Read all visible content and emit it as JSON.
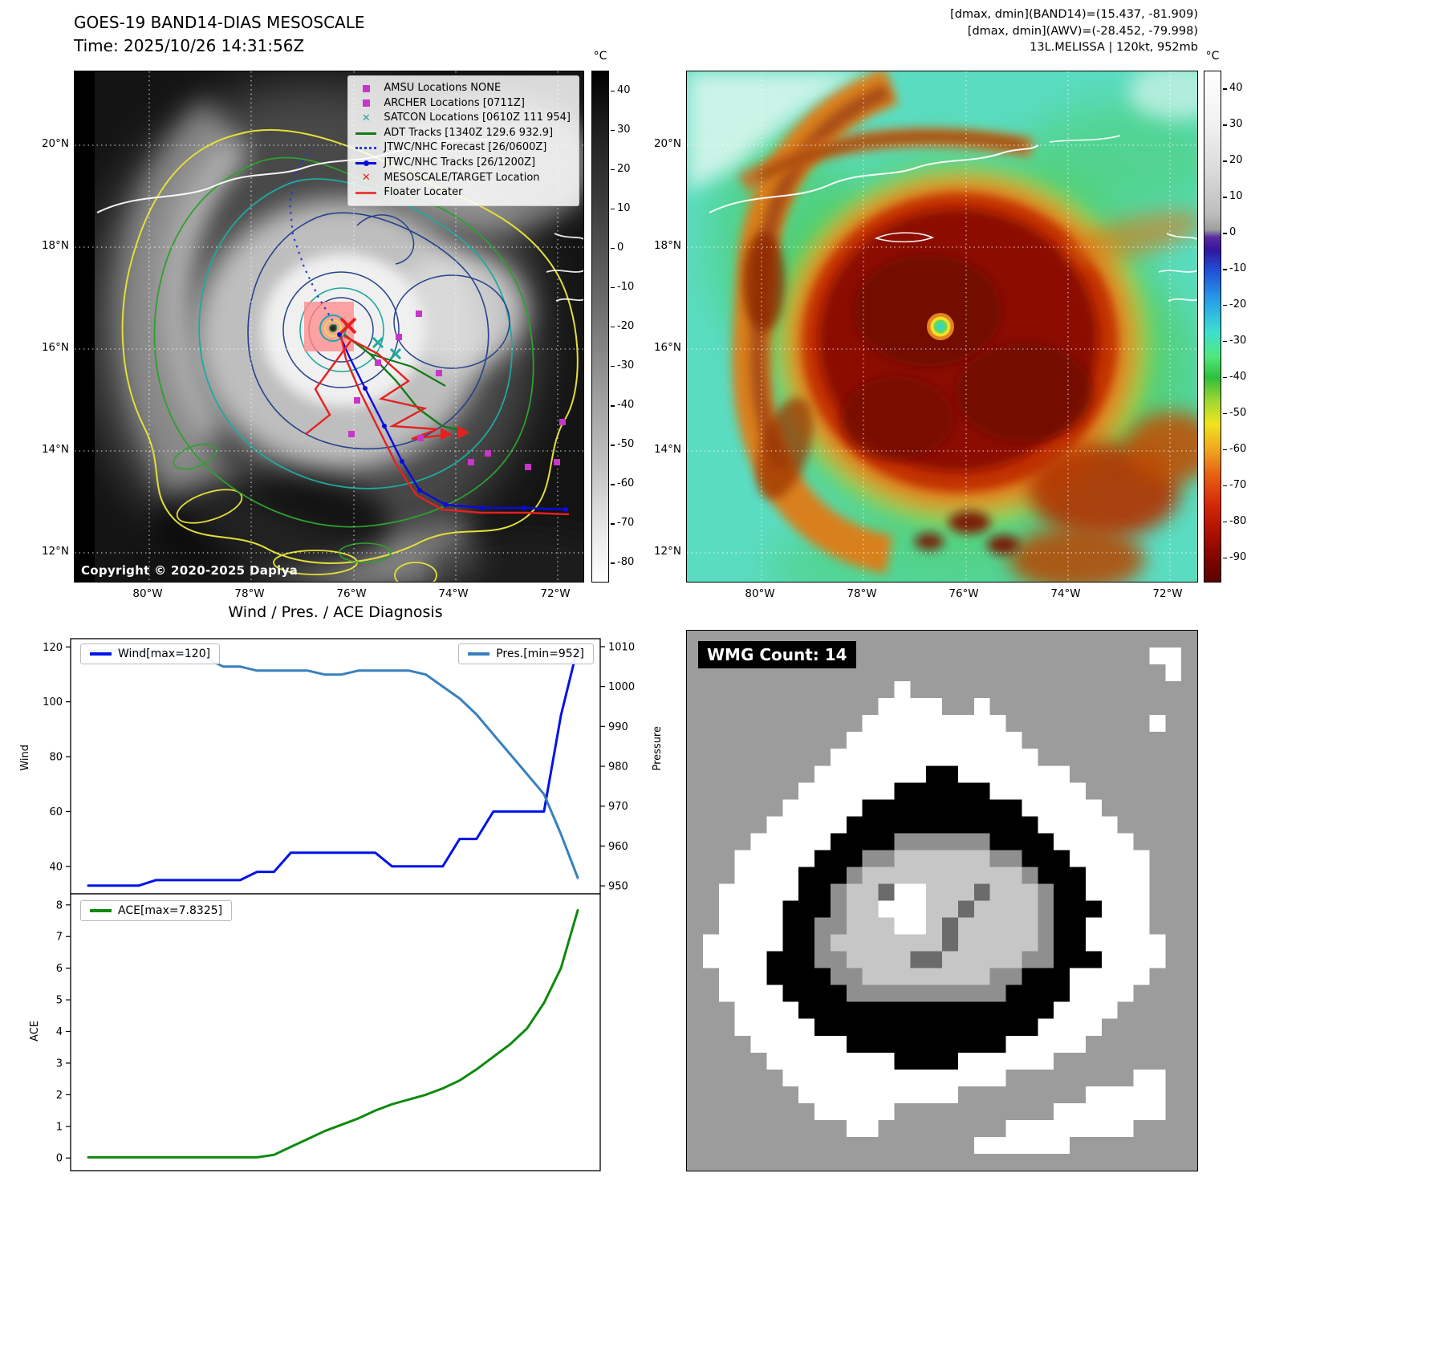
{
  "left_map": {
    "title": "GOES-19 BAND14-DIAS MESOSCALE",
    "subtitle": "Time: 2025/10/26 14:31:56Z",
    "copyright": "Copyright © 2020-2025 Dapiya",
    "legend": [
      {
        "label": "AMSU Locations NONE",
        "marker": "square",
        "color": "#c935c9"
      },
      {
        "label": "ARCHER Locations [0711Z]",
        "marker": "square",
        "color": "#c935c9"
      },
      {
        "label": "SATCON Locations [0610Z 111 954]",
        "marker": "x",
        "color": "#1fa8a0"
      },
      {
        "label": "ADT Tracks [1340Z 129.6 932.9]",
        "marker": "line",
        "color": "#157a15"
      },
      {
        "label": "JTWC/NHC Forecast [26/0600Z]",
        "marker": "dotted",
        "color": "#2a3bd0"
      },
      {
        "label": "JTWC/NHC Tracks [26/1200Z]",
        "marker": "line-dot",
        "color": "#0a0ae0"
      },
      {
        "label": "MESOSCALE/TARGET Location",
        "marker": "x",
        "color": "#e82020"
      },
      {
        "label": "Floater Locater",
        "marker": "line",
        "color": "#e84040"
      }
    ],
    "colorbar": {
      "unit": "°C",
      "ticks": [
        40,
        30,
        20,
        10,
        0,
        -10,
        -20,
        -30,
        -40,
        -50,
        -60,
        -70,
        -80
      ]
    },
    "lat_ticks": [
      "20°N",
      "18°N",
      "16°N",
      "14°N",
      "12°N"
    ],
    "lon_ticks": [
      "80°W",
      "78°W",
      "76°W",
      "74°W",
      "72°W"
    ]
  },
  "right_map": {
    "header_line1": "[dmax, dmin](BAND14)=(15.437, -81.909)",
    "header_line2": "[dmax, dmin](AWV)=(-28.452, -79.998)",
    "header_line3": "13L.MELISSA | 120kt, 952mb",
    "colorbar": {
      "unit": "°C",
      "ticks": [
        40,
        30,
        20,
        10,
        0,
        -10,
        -20,
        -30,
        -40,
        -50,
        -60,
        -70,
        -80,
        -90
      ]
    },
    "lat_ticks": [
      "20°N",
      "18°N",
      "16°N",
      "14°N",
      "12°N"
    ],
    "lon_ticks": [
      "80°W",
      "78°W",
      "76°W",
      "74°W",
      "72°W"
    ]
  },
  "charts": {
    "section_title": "Wind / Pres. / ACE Diagnosis"
  },
  "chart_data": [
    {
      "type": "line",
      "title": "Wind / Pres. / ACE Diagnosis",
      "series": [
        {
          "name": "Wind[max=120]",
          "axis": "left",
          "color": "#0013e8",
          "values": [
            33,
            33,
            33,
            33,
            35,
            35,
            35,
            35,
            35,
            35,
            38,
            38,
            45,
            45,
            45,
            45,
            45,
            45,
            40,
            40,
            40,
            40,
            50,
            50,
            60,
            60,
            60,
            60,
            95,
            120
          ]
        },
        {
          "name": "Pres.[min=952]",
          "axis": "right",
          "color": "#3880bd",
          "values": [
            1009,
            1009,
            1009,
            1009,
            1009,
            1008,
            1008,
            1007,
            1005,
            1005,
            1004,
            1004,
            1004,
            1004,
            1003,
            1003,
            1004,
            1004,
            1004,
            1004,
            1003,
            1000,
            997,
            993,
            988,
            983,
            978,
            973,
            963,
            952
          ]
        }
      ],
      "ylabel_left": "Wind",
      "ylabel_right": "Pressure",
      "ylim_left": [
        30,
        123
      ],
      "ylim_right": [
        948,
        1012
      ],
      "yticks_left": [
        40,
        60,
        80,
        100,
        120
      ],
      "yticks_right": [
        950,
        960,
        970,
        980,
        990,
        1000,
        1010
      ],
      "legend_position": "upper-left-and-upper-right",
      "grid": false
    },
    {
      "type": "line",
      "series": [
        {
          "name": "ACE[max=7.8325]",
          "axis": "left",
          "color": "#0f8a0f",
          "values": [
            0.02,
            0.02,
            0.02,
            0.02,
            0.02,
            0.02,
            0.02,
            0.02,
            0.02,
            0.02,
            0.02,
            0.1,
            0.35,
            0.6,
            0.85,
            1.05,
            1.25,
            1.5,
            1.7,
            1.85,
            2.0,
            2.2,
            2.45,
            2.8,
            3.2,
            3.6,
            4.1,
            4.9,
            6.0,
            7.83
          ]
        }
      ],
      "ylabel_left": "ACE",
      "ylim_left": [
        -0.4,
        8.35
      ],
      "yticks_left": [
        0,
        1,
        2,
        3,
        4,
        5,
        6,
        7,
        8
      ],
      "legend_position": "upper-left",
      "grid": false
    }
  ],
  "wmg": {
    "label": "WMG Count: 14",
    "palette": {
      "g": "#9c9c9c",
      "w": "#ffffff",
      "b": "#000000",
      "m": "#8f8f8f",
      "l": "#c6c6c6",
      "d": "#6b6b6b"
    },
    "grid": [
      "gggggggggggggggggggggggggggggggg",
      "gggggggggggggggggggggggggggggwwg",
      "ggggggggggggggggggggggggggggggwg",
      "gggggggggggggwgggggggggggggggggg",
      "ggggggggggggwwwwggwggggggggggggg",
      "gggggggggggwwwwwwwwwgggggggggwgg",
      "ggggggggggwwwwwwwwwwwggggggggggg",
      "gggggggggwwwwwwwwwwwwwgggggggggg",
      "ggggggggwwwwwwwbbwwww wwwgggggggg",
      "gggggggwwwwwwbbbbbbwwwwwwggggggg",
      "ggggggwwwwwbbbbbbbbbbwwwwwgggggg",
      "gggggwwwwwbbbbbbbbbbbbwwwwwggggg",
      "ggggwwwwwbbbbmmmmmmbbbbwwwwwgggg",
      "gggwwwwwbbbmmllllllmmbbbwwwwwggg",
      "gggwwwwbbbmllllllllllmbbbwwwwggg",
      "ggwwwwwbbmlldwwllldlllmbbwwwwggg",
      "ggwwwwbbbmllwwwlldllllmbbbwwwggg",
      "ggwwwwbbmmlllwwldlllllmbbwwwwggg",
      "gwwwwwbbmllllllldlllllmbbwwwwwgg",
      "gwwwwbbbmmllllddlllllmmbbbwwwwgg",
      "ggwwwbbbbmmllllllllmmbbbwwwwwggg",
      "ggwwwwbbbbmmmmmmmmmmbbbbwwwwgggg",
      "gggwwwwbbbbbbbbbbbbbbbbwwwwggggg",
      "gggwwwwwbbbbbbbbbbbbbbwwwwgggggg",
      "ggggwwwwwwbbbbbbbbbbwwwwwggggggg",
      "gggggwwwwwwwwbbbbwwwwwwggggggggg",
      "ggggggwwwwwwwwwwwwwwggggggggwwgg",
      "gggggggwwwwwwwwwwggggggggwwwwwgg",
      "ggggggggwwwwwggggggggggwwwwwwwgg",
      "ggggggggggwwggggggggwwwwwwwwgggg",
      "ggggggggggggggggggwwwwwwgggggggg",
      "gggggggggggggggggggggggggggggggg"
    ]
  }
}
